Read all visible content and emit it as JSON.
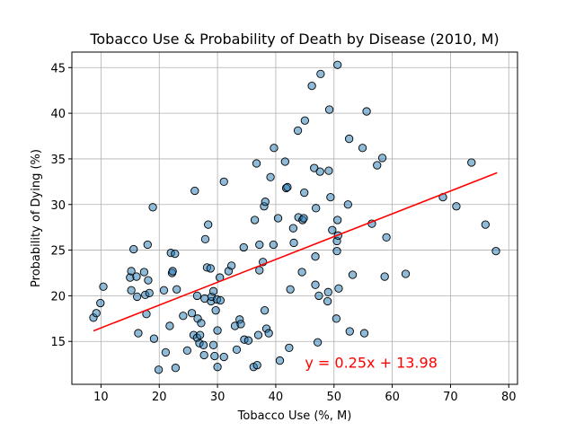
{
  "chart_data": {
    "type": "scatter",
    "title": "Tobacco Use & Probability of Death by Disease (2010, M)",
    "xlabel": "Tobacco Use (%, M)",
    "ylabel": "Probability of Dying (%)",
    "xlim": [
      5,
      81.5
    ],
    "ylim": [
      10.3,
      46.7
    ],
    "xticks": [
      10,
      20,
      30,
      40,
      50,
      60,
      70,
      80
    ],
    "yticks": [
      15,
      20,
      25,
      30,
      35,
      40,
      45
    ],
    "grid": true,
    "point_color": "#1f77b4",
    "line_color": "#ff0000",
    "points": [
      [
        8.7,
        17.6
      ],
      [
        9.2,
        18.1
      ],
      [
        9.9,
        19.2
      ],
      [
        10.4,
        21.0
      ],
      [
        15.0,
        22.0
      ],
      [
        15.2,
        22.7
      ],
      [
        15.2,
        20.6
      ],
      [
        15.6,
        25.1
      ],
      [
        16.1,
        22.1
      ],
      [
        16.2,
        19.9
      ],
      [
        16.4,
        15.9
      ],
      [
        17.4,
        22.6
      ],
      [
        17.6,
        20.1
      ],
      [
        17.8,
        18.0
      ],
      [
        18.0,
        25.6
      ],
      [
        18.1,
        21.7
      ],
      [
        18.3,
        20.3
      ],
      [
        18.9,
        29.7
      ],
      [
        19.1,
        15.3
      ],
      [
        19.9,
        11.9
      ],
      [
        20.8,
        20.6
      ],
      [
        21.1,
        13.8
      ],
      [
        21.8,
        16.7
      ],
      [
        22.0,
        24.7
      ],
      [
        22.2,
        22.5
      ],
      [
        22.3,
        22.7
      ],
      [
        22.7,
        24.6
      ],
      [
        22.8,
        12.1
      ],
      [
        23.0,
        20.7
      ],
      [
        24.1,
        17.8
      ],
      [
        24.8,
        14.0
      ],
      [
        25.6,
        18.1
      ],
      [
        25.9,
        15.7
      ],
      [
        26.1,
        31.5
      ],
      [
        26.5,
        15.4
      ],
      [
        26.5,
        20.0
      ],
      [
        26.6,
        17.5
      ],
      [
        26.9,
        14.8
      ],
      [
        27.0,
        15.7
      ],
      [
        27.2,
        17.0
      ],
      [
        27.6,
        14.6
      ],
      [
        27.7,
        13.5
      ],
      [
        27.8,
        19.7
      ],
      [
        27.9,
        26.2
      ],
      [
        28.2,
        23.1
      ],
      [
        28.4,
        27.8
      ],
      [
        28.8,
        23.0
      ],
      [
        28.9,
        19.4
      ],
      [
        29.0,
        19.9
      ],
      [
        29.3,
        14.6
      ],
      [
        29.3,
        20.5
      ],
      [
        29.5,
        13.4
      ],
      [
        29.7,
        18.4
      ],
      [
        29.9,
        19.6
      ],
      [
        30.0,
        16.2
      ],
      [
        30.0,
        12.2
      ],
      [
        30.4,
        22.0
      ],
      [
        30.5,
        19.5
      ],
      [
        31.1,
        13.3
      ],
      [
        31.1,
        32.5
      ],
      [
        31.9,
        22.7
      ],
      [
        32.4,
        23.3
      ],
      [
        33.0,
        16.7
      ],
      [
        33.3,
        14.1
      ],
      [
        33.8,
        17.4
      ],
      [
        34.0,
        16.9
      ],
      [
        34.5,
        25.3
      ],
      [
        34.6,
        15.2
      ],
      [
        35.3,
        15.1
      ],
      [
        36.2,
        12.2
      ],
      [
        36.4,
        28.3
      ],
      [
        36.7,
        34.5
      ],
      [
        36.8,
        12.4
      ],
      [
        37.0,
        15.7
      ],
      [
        37.2,
        22.8
      ],
      [
        37.2,
        25.6
      ],
      [
        37.8,
        23.7
      ],
      [
        38.0,
        29.8
      ],
      [
        38.1,
        18.4
      ],
      [
        38.2,
        30.3
      ],
      [
        38.4,
        16.4
      ],
      [
        38.8,
        15.9
      ],
      [
        39.1,
        33.0
      ],
      [
        39.6,
        25.6
      ],
      [
        39.7,
        36.2
      ],
      [
        40.4,
        28.5
      ],
      [
        40.7,
        12.9
      ],
      [
        41.6,
        34.7
      ],
      [
        41.8,
        31.8
      ],
      [
        42.0,
        31.9
      ],
      [
        42.3,
        14.3
      ],
      [
        42.5,
        20.7
      ],
      [
        43.0,
        27.4
      ],
      [
        43.1,
        25.8
      ],
      [
        43.8,
        38.1
      ],
      [
        43.9,
        28.6
      ],
      [
        44.5,
        22.6
      ],
      [
        44.6,
        28.3
      ],
      [
        44.8,
        28.5
      ],
      [
        44.9,
        31.3
      ],
      [
        45.0,
        39.2
      ],
      [
        46.2,
        43.0
      ],
      [
        46.6,
        34.0
      ],
      [
        46.8,
        24.3
      ],
      [
        46.8,
        21.2
      ],
      [
        46.9,
        29.6
      ],
      [
        47.2,
        14.9
      ],
      [
        47.4,
        20.0
      ],
      [
        47.6,
        33.6
      ],
      [
        47.7,
        44.3
      ],
      [
        48.9,
        19.4
      ],
      [
        49.0,
        20.4
      ],
      [
        49.1,
        33.7
      ],
      [
        49.2,
        40.4
      ],
      [
        49.4,
        30.8
      ],
      [
        49.7,
        27.2
      ],
      [
        50.4,
        17.5
      ],
      [
        50.5,
        26.0
      ],
      [
        50.5,
        24.9
      ],
      [
        50.6,
        28.3
      ],
      [
        50.6,
        45.3
      ],
      [
        50.7,
        26.6
      ],
      [
        50.8,
        20.8
      ],
      [
        52.4,
        30.0
      ],
      [
        52.6,
        37.2
      ],
      [
        52.7,
        16.1
      ],
      [
        53.2,
        22.3
      ],
      [
        54.9,
        36.2
      ],
      [
        55.2,
        15.9
      ],
      [
        55.6,
        40.2
      ],
      [
        56.5,
        27.9
      ],
      [
        57.4,
        34.3
      ],
      [
        58.3,
        35.1
      ],
      [
        58.7,
        22.1
      ],
      [
        59.0,
        26.4
      ],
      [
        62.3,
        22.4
      ],
      [
        68.7,
        30.8
      ],
      [
        71.0,
        29.8
      ],
      [
        73.6,
        34.6
      ],
      [
        76.0,
        27.8
      ],
      [
        77.8,
        24.9
      ]
    ],
    "fit_line": {
      "slope": 0.25,
      "intercept": 13.98,
      "x_range": [
        8.7,
        78.0
      ]
    },
    "annotation": {
      "text": "y = 0.25x + 13.98",
      "x": 45,
      "y": 12.1
    }
  }
}
